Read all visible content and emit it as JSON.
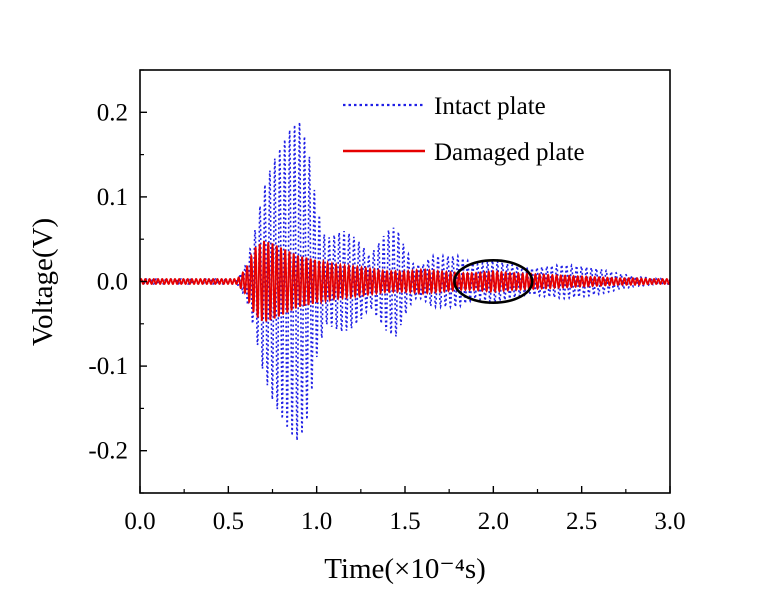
{
  "chart_data": {
    "type": "line",
    "xlabel": "Time(×10⁻⁴s)",
    "ylabel": "Voltage(V)",
    "xlim": [
      0.0,
      3.0
    ],
    "ylim": [
      -0.25,
      0.25
    ],
    "xticks": [
      "0.0",
      "0.5",
      "1.0",
      "1.5",
      "2.0",
      "2.5",
      "3.0"
    ],
    "yticks": [
      "-0.2",
      "-0.1",
      "0.0",
      "0.1",
      "0.2"
    ],
    "grid": false,
    "legend_position": "top-right",
    "series": [
      {
        "name": "Intact plate",
        "style": "dotted",
        "color": "#1f1fe6",
        "envelope": [
          [
            0.0,
            0.003
          ],
          [
            0.55,
            0.003
          ],
          [
            0.6,
            0.02
          ],
          [
            0.65,
            0.06
          ],
          [
            0.7,
            0.11
          ],
          [
            0.75,
            0.14
          ],
          [
            0.8,
            0.16
          ],
          [
            0.85,
            0.18
          ],
          [
            0.9,
            0.19
          ],
          [
            0.95,
            0.16
          ],
          [
            1.0,
            0.09
          ],
          [
            1.05,
            0.05
          ],
          [
            1.1,
            0.055
          ],
          [
            1.15,
            0.06
          ],
          [
            1.2,
            0.055
          ],
          [
            1.25,
            0.045
          ],
          [
            1.3,
            0.03
          ],
          [
            1.35,
            0.045
          ],
          [
            1.4,
            0.06
          ],
          [
            1.45,
            0.065
          ],
          [
            1.5,
            0.04
          ],
          [
            1.55,
            0.02
          ],
          [
            1.6,
            0.02
          ],
          [
            1.65,
            0.03
          ],
          [
            1.7,
            0.03
          ],
          [
            1.8,
            0.03
          ],
          [
            1.9,
            0.02
          ],
          [
            2.0,
            0.025
          ],
          [
            2.1,
            0.02
          ],
          [
            2.2,
            0.015
          ],
          [
            2.3,
            0.018
          ],
          [
            2.4,
            0.02
          ],
          [
            2.5,
            0.018
          ],
          [
            2.6,
            0.015
          ],
          [
            2.7,
            0.01
          ],
          [
            2.8,
            0.006
          ],
          [
            2.9,
            0.004
          ],
          [
            3.0,
            0.003
          ]
        ]
      },
      {
        "name": "Damaged plate",
        "style": "solid",
        "color": "#e60000",
        "envelope": [
          [
            0.0,
            0.003
          ],
          [
            0.55,
            0.003
          ],
          [
            0.6,
            0.015
          ],
          [
            0.65,
            0.04
          ],
          [
            0.7,
            0.048
          ],
          [
            0.75,
            0.045
          ],
          [
            0.8,
            0.04
          ],
          [
            0.85,
            0.035
          ],
          [
            0.9,
            0.03
          ],
          [
            0.95,
            0.028
          ],
          [
            1.0,
            0.025
          ],
          [
            1.1,
            0.02
          ],
          [
            1.2,
            0.018
          ],
          [
            1.3,
            0.015
          ],
          [
            1.4,
            0.012
          ],
          [
            1.5,
            0.012
          ],
          [
            1.6,
            0.014
          ],
          [
            1.7,
            0.012
          ],
          [
            1.8,
            0.01
          ],
          [
            1.9,
            0.01
          ],
          [
            2.0,
            0.012
          ],
          [
            2.1,
            0.01
          ],
          [
            2.2,
            0.009
          ],
          [
            2.3,
            0.008
          ],
          [
            2.4,
            0.007
          ],
          [
            2.5,
            0.006
          ],
          [
            2.6,
            0.005
          ],
          [
            2.7,
            0.004
          ],
          [
            2.8,
            0.004
          ],
          [
            2.9,
            0.003
          ],
          [
            3.0,
            0.003
          ]
        ]
      }
    ],
    "annotations": [
      {
        "shape": "ellipse",
        "color": "#000000",
        "center": [
          2.0,
          0.0
        ],
        "x_radius": 0.22,
        "y_radius": 0.025
      }
    ]
  }
}
